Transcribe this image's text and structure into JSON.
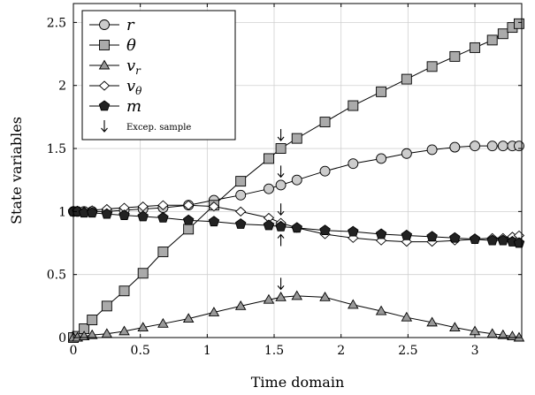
{
  "chart_data": {
    "type": "line",
    "xlabel": "Time domain",
    "ylabel": "State variables",
    "xlim": [
      0,
      3.35
    ],
    "ylim": [
      0,
      2.65
    ],
    "xticks": [
      0,
      0.5,
      1,
      1.5,
      2,
      2.5,
      3
    ],
    "xtick_labels": [
      "0",
      "0.5",
      "1",
      "1.5",
      "2",
      "2.5",
      "3"
    ],
    "yticks": [
      0,
      0.5,
      1,
      1.5,
      2,
      2.5
    ],
    "ytick_labels": [
      "0",
      "0.5",
      "1",
      "1.5",
      "2",
      "2.5"
    ],
    "grid": true,
    "legend_position": "top-left",
    "series": [
      {
        "name": "r",
        "sub": "",
        "marker": "circle",
        "fill": "#cccccc",
        "points": [
          [
            0,
            1.0
          ],
          [
            0.03,
            1.0
          ],
          [
            0.08,
            1.0
          ],
          [
            0.14,
            1.0
          ],
          [
            0.25,
            1.0
          ],
          [
            0.38,
            1.01
          ],
          [
            0.52,
            1.02
          ],
          [
            0.67,
            1.03
          ],
          [
            0.86,
            1.05
          ],
          [
            1.05,
            1.09
          ],
          [
            1.25,
            1.13
          ],
          [
            1.46,
            1.18
          ],
          [
            1.55,
            1.21
          ],
          [
            1.67,
            1.25
          ],
          [
            1.88,
            1.32
          ],
          [
            2.09,
            1.38
          ],
          [
            2.3,
            1.42
          ],
          [
            2.49,
            1.46
          ],
          [
            2.68,
            1.49
          ],
          [
            2.85,
            1.51
          ],
          [
            3.0,
            1.52
          ],
          [
            3.13,
            1.52
          ],
          [
            3.21,
            1.52
          ],
          [
            3.28,
            1.52
          ],
          [
            3.33,
            1.52
          ]
        ]
      },
      {
        "name": "θ",
        "sub": "",
        "marker": "square",
        "fill": "#aaaaaa",
        "points": [
          [
            0,
            0.0
          ],
          [
            0.03,
            0.01
          ],
          [
            0.08,
            0.07
          ],
          [
            0.14,
            0.14
          ],
          [
            0.25,
            0.25
          ],
          [
            0.38,
            0.37
          ],
          [
            0.52,
            0.51
          ],
          [
            0.67,
            0.68
          ],
          [
            0.86,
            0.86
          ],
          [
            1.05,
            1.05
          ],
          [
            1.25,
            1.24
          ],
          [
            1.46,
            1.42
          ],
          [
            1.55,
            1.5
          ],
          [
            1.67,
            1.58
          ],
          [
            1.88,
            1.71
          ],
          [
            2.09,
            1.84
          ],
          [
            2.3,
            1.95
          ],
          [
            2.49,
            2.05
          ],
          [
            2.68,
            2.15
          ],
          [
            2.85,
            2.23
          ],
          [
            3.0,
            2.3
          ],
          [
            3.13,
            2.36
          ],
          [
            3.21,
            2.41
          ],
          [
            3.28,
            2.46
          ],
          [
            3.33,
            2.49
          ]
        ]
      },
      {
        "name": "v",
        "sub": "r",
        "marker": "triangle",
        "fill": "#999999",
        "points": [
          [
            0,
            0.0
          ],
          [
            0.03,
            0.0
          ],
          [
            0.08,
            0.01
          ],
          [
            0.14,
            0.02
          ],
          [
            0.25,
            0.03
          ],
          [
            0.38,
            0.05
          ],
          [
            0.52,
            0.08
          ],
          [
            0.67,
            0.11
          ],
          [
            0.86,
            0.15
          ],
          [
            1.05,
            0.2
          ],
          [
            1.25,
            0.25
          ],
          [
            1.46,
            0.3
          ],
          [
            1.55,
            0.32
          ],
          [
            1.67,
            0.33
          ],
          [
            1.88,
            0.32
          ],
          [
            2.09,
            0.26
          ],
          [
            2.3,
            0.21
          ],
          [
            2.49,
            0.16
          ],
          [
            2.68,
            0.12
          ],
          [
            2.85,
            0.08
          ],
          [
            3.0,
            0.05
          ],
          [
            3.13,
            0.03
          ],
          [
            3.21,
            0.02
          ],
          [
            3.28,
            0.01
          ],
          [
            3.33,
            0.0
          ]
        ]
      },
      {
        "name": "v",
        "sub": "θ",
        "marker": "diamond",
        "fill": "#ffffff",
        "points": [
          [
            0,
            1.0
          ],
          [
            0.03,
            1.0
          ],
          [
            0.08,
            1.0
          ],
          [
            0.14,
            1.01
          ],
          [
            0.25,
            1.02
          ],
          [
            0.38,
            1.03
          ],
          [
            0.52,
            1.04
          ],
          [
            0.67,
            1.05
          ],
          [
            0.86,
            1.05
          ],
          [
            1.05,
            1.04
          ],
          [
            1.25,
            1.0
          ],
          [
            1.46,
            0.95
          ],
          [
            1.55,
            0.91
          ],
          [
            1.67,
            0.87
          ],
          [
            1.88,
            0.82
          ],
          [
            2.09,
            0.79
          ],
          [
            2.3,
            0.77
          ],
          [
            2.49,
            0.76
          ],
          [
            2.68,
            0.76
          ],
          [
            2.85,
            0.77
          ],
          [
            3.0,
            0.78
          ],
          [
            3.13,
            0.79
          ],
          [
            3.21,
            0.79
          ],
          [
            3.28,
            0.8
          ],
          [
            3.33,
            0.81
          ]
        ]
      },
      {
        "name": "m",
        "sub": "",
        "marker": "pentagon",
        "fill": "#222222",
        "points": [
          [
            0,
            1.0
          ],
          [
            0.03,
            1.0
          ],
          [
            0.08,
            0.99
          ],
          [
            0.14,
            0.99
          ],
          [
            0.25,
            0.98
          ],
          [
            0.38,
            0.97
          ],
          [
            0.52,
            0.96
          ],
          [
            0.67,
            0.95
          ],
          [
            0.86,
            0.93
          ],
          [
            1.05,
            0.92
          ],
          [
            1.25,
            0.9
          ],
          [
            1.46,
            0.89
          ],
          [
            1.55,
            0.88
          ],
          [
            1.67,
            0.87
          ],
          [
            1.88,
            0.85
          ],
          [
            2.09,
            0.84
          ],
          [
            2.3,
            0.82
          ],
          [
            2.49,
            0.81
          ],
          [
            2.68,
            0.8
          ],
          [
            2.85,
            0.79
          ],
          [
            3.0,
            0.78
          ],
          [
            3.13,
            0.77
          ],
          [
            3.21,
            0.77
          ],
          [
            3.28,
            0.76
          ],
          [
            3.33,
            0.75
          ]
        ]
      }
    ],
    "exceptional_samples": {
      "label": "Excep. sample",
      "x": 1.55,
      "arrows": [
        {
          "y": 1.5,
          "direction": "down"
        },
        {
          "y": 1.21,
          "direction": "down"
        },
        {
          "y": 0.91,
          "direction": "down"
        },
        {
          "y": 0.88,
          "direction": "up"
        },
        {
          "y": 0.32,
          "direction": "down"
        }
      ]
    }
  }
}
